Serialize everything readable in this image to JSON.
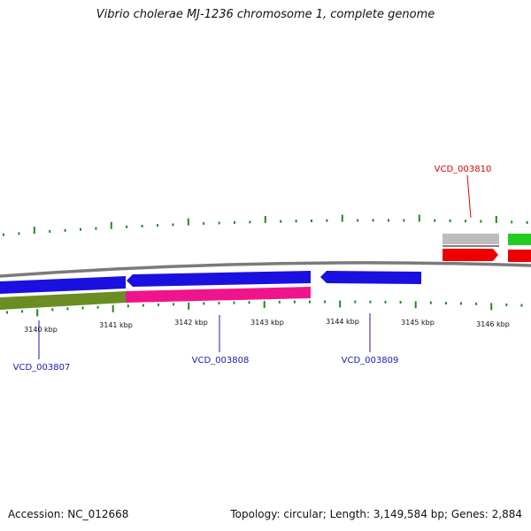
{
  "title": "Vibrio cholerae MJ-1236 chromosome 1, complete genome",
  "colors": {
    "backbone": "#7a7a7a",
    "tick": "#1f8a1f",
    "blue": "#1a10e0",
    "olive": "#6b8e23",
    "magenta": "#f0148c",
    "gray": "#bdbdbd",
    "green": "#22cc22",
    "red": "#ee0000",
    "label_blue": "#1a1ab0",
    "label_red": "#dd0000"
  },
  "scale_labels": [
    "3140 kbp",
    "3141 kbp",
    "3142 kbp",
    "3143 kbp",
    "3144 kbp",
    "3145 kbp",
    "3146 kbp"
  ],
  "gene_labels": [
    {
      "text": "VCD_003807",
      "color": "blue"
    },
    {
      "text": "VCD_003808",
      "color": "blue"
    },
    {
      "text": "VCD_003809",
      "color": "blue"
    },
    {
      "text": "VCD_003810",
      "color": "red"
    }
  ],
  "footer": {
    "accession": "Accession: NC_012668",
    "summary": "Topology: circular; Length: 3,149,584 bp; Genes: 2,884"
  }
}
